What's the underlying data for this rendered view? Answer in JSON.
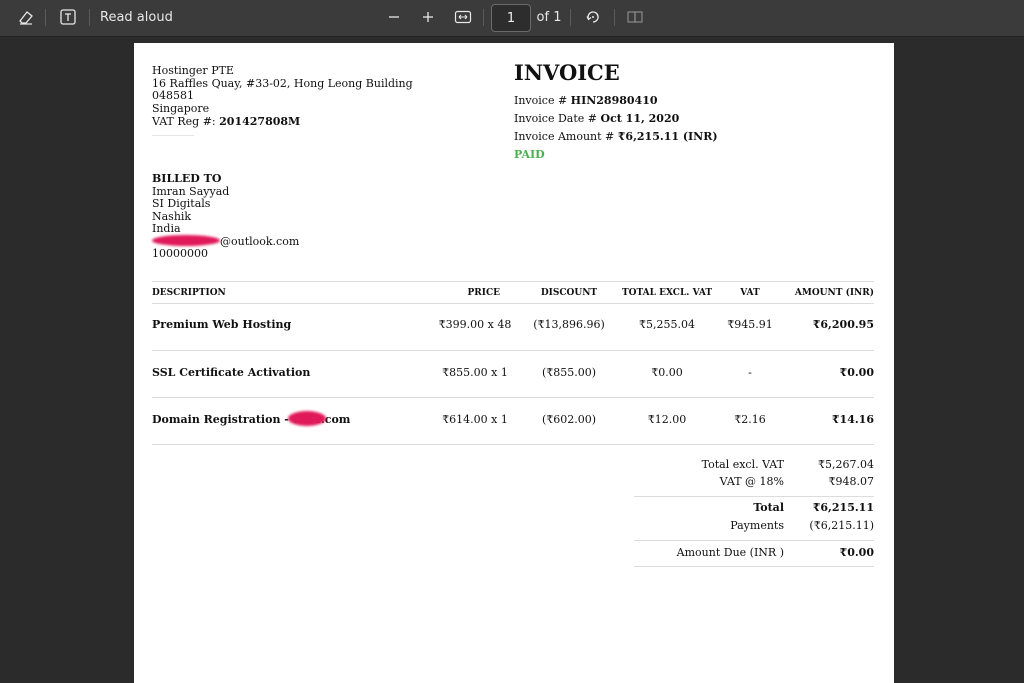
{
  "toolbar": {
    "read_aloud": "Read aloud",
    "page_current": "1",
    "page_of": "of 1"
  },
  "seller": {
    "name": "Hostinger PTE",
    "address1": "16 Raffles Quay, #33-02, Hong Leong Building",
    "postcode": "048581",
    "country": "Singapore",
    "vat_label": "VAT Reg #:",
    "vat_value": "201427808M"
  },
  "invoice": {
    "title": "INVOICE",
    "number_label": "Invoice #",
    "number_value": "HIN28980410",
    "date_label": "Invoice Date #",
    "date_value": "Oct 11, 2020",
    "amount_label": "Invoice Amount #",
    "amount_value": "₹6,215.11 (INR)",
    "status": "PAID"
  },
  "billed_to": {
    "heading": "BILLED TO",
    "name": "Imran Sayyad",
    "company": "SI Digitals",
    "city": "Nashik",
    "country": "India",
    "email_suffix": "@outlook.com",
    "phone": "10000000"
  },
  "table": {
    "headers": [
      "DESCRIPTION",
      "PRICE",
      "DISCOUNT",
      "TOTAL EXCL. VAT",
      "VAT",
      "AMOUNT (INR)"
    ],
    "rows": [
      {
        "desc": "Premium Web Hosting",
        "price": "₹399.00 x 48",
        "discount": "(₹13,896.96)",
        "total": "₹5,255.04",
        "vat": "₹945.91",
        "amount": "₹6,200.95"
      },
      {
        "desc": "SSL Certificate Activation",
        "price": "₹855.00 x 1",
        "discount": "(₹855.00)",
        "total": "₹0.00",
        "vat": "-",
        "amount": "₹0.00"
      },
      {
        "desc": "Domain Registration - w",
        "desc_suffix": "r.com",
        "price": "₹614.00 x 1",
        "discount": "(₹602.00)",
        "total": "₹12.00",
        "vat": "₹2.16",
        "amount": "₹14.16"
      }
    ]
  },
  "summary": {
    "excl_label": "Total excl. VAT",
    "excl_value": "₹5,267.04",
    "vat_label": "VAT @ 18%",
    "vat_value": "₹948.07",
    "total_label": "Total",
    "total_value": "₹6,215.11",
    "payments_label": "Payments",
    "payments_value": "(₹6,215.11)",
    "due_label": "Amount Due (INR )",
    "due_value": "₹0.00"
  },
  "colors": {
    "paid": "#4caf50",
    "redaction": "#e0195a",
    "toolbar": "#3b3b3b"
  },
  "icons": [
    "eraser-icon",
    "text-box-icon",
    "zoom-out-icon",
    "zoom-in-icon",
    "fit-width-icon",
    "rotate-icon",
    "two-page-icon"
  ]
}
